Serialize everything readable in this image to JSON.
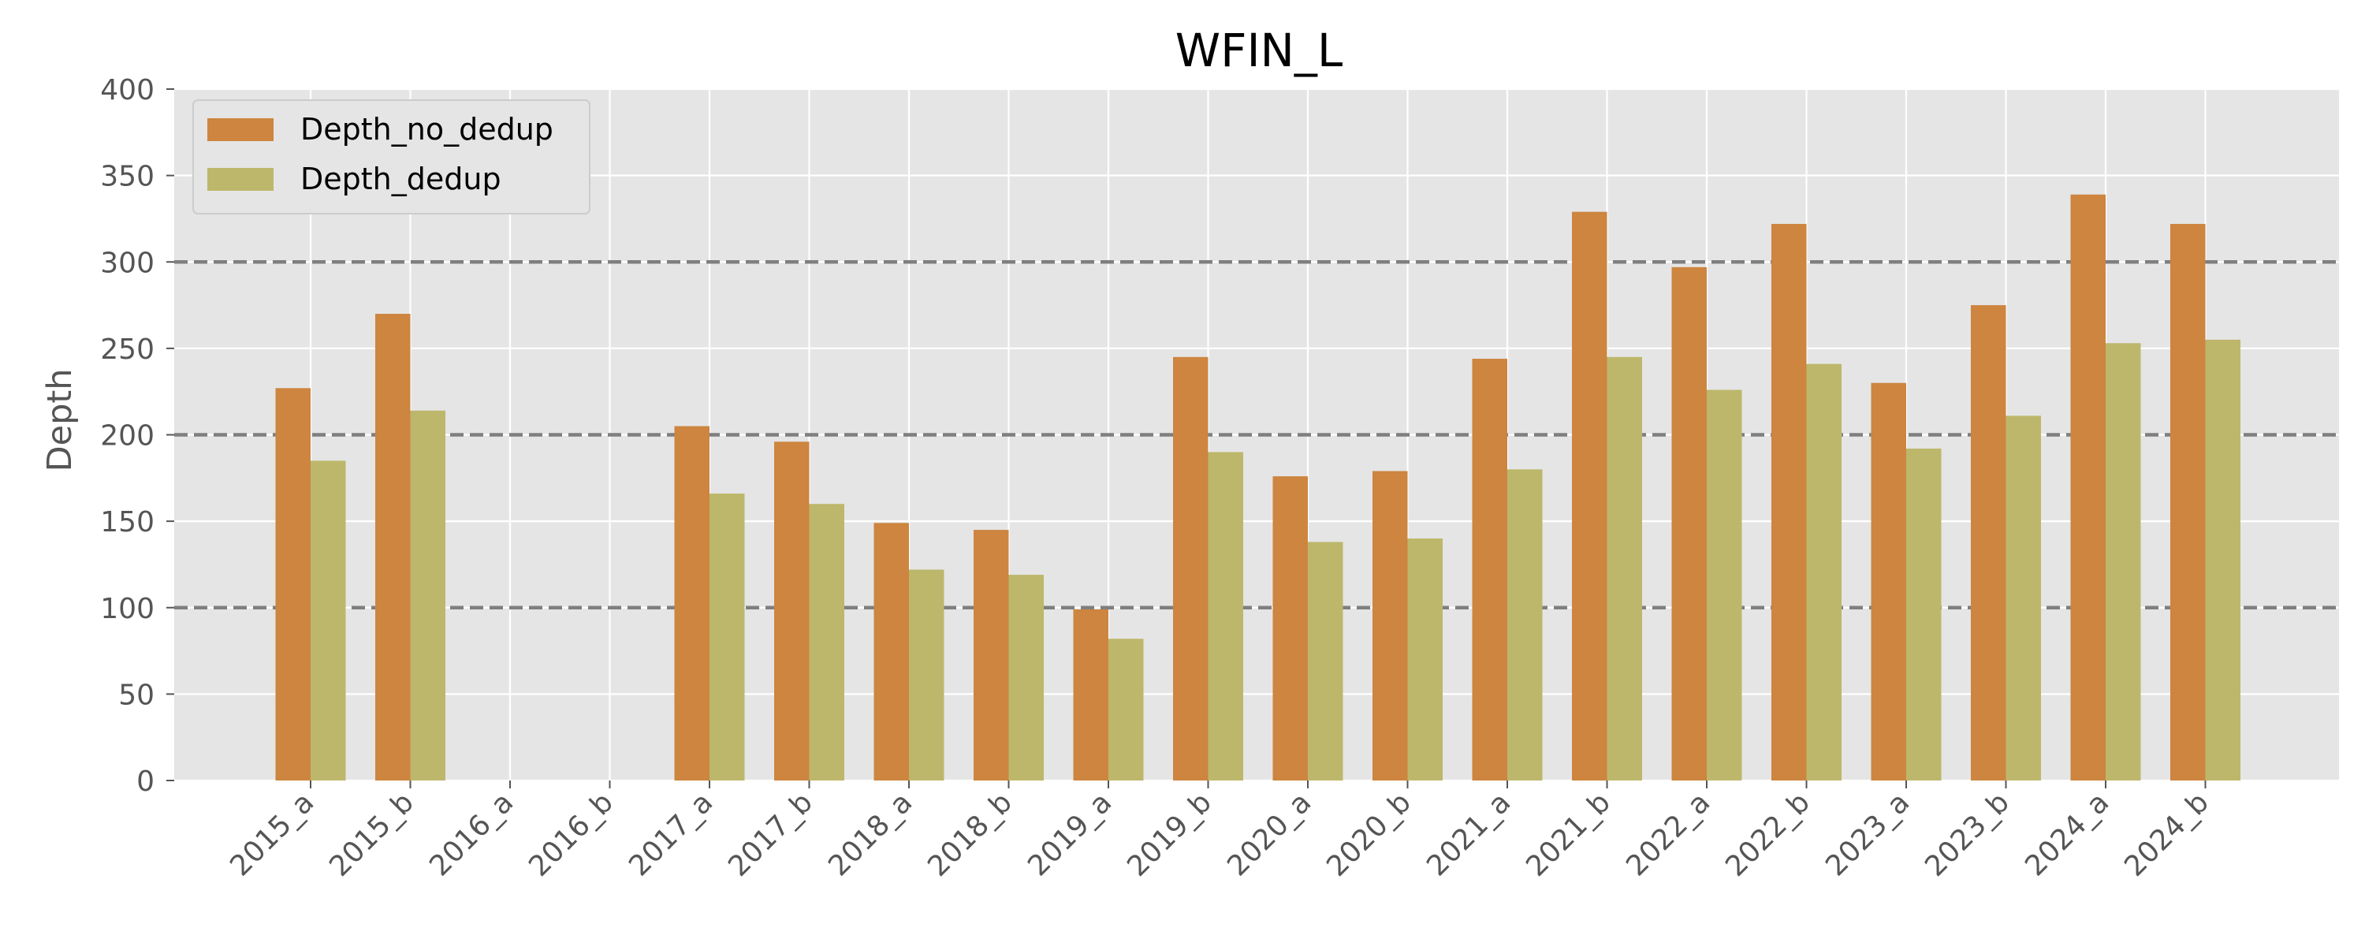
{
  "chart_data": {
    "type": "bar",
    "title": "WFIN_L",
    "xlabel": "",
    "ylabel": "Depth",
    "ylim": [
      0,
      400
    ],
    "yticks": [
      0,
      50,
      100,
      150,
      200,
      250,
      300,
      350,
      400
    ],
    "grid": true,
    "legend_position": "top-left",
    "reference_lines": [
      100,
      200,
      300
    ],
    "reference_line_color": "#7f7f7f",
    "background_color": "#e5e5e5",
    "categories": [
      "2015_a",
      "2015_b",
      "2016_a",
      "2016_b",
      "2017_a",
      "2017_b",
      "2018_a",
      "2018_b",
      "2019_a",
      "2019_b",
      "2020_a",
      "2020_b",
      "2021_a",
      "2021_b",
      "2022_a",
      "2022_b",
      "2023_a",
      "2023_b",
      "2024_a",
      "2024_b"
    ],
    "series": [
      {
        "name": "Depth_no_dedup",
        "color": "#cd853f",
        "values": [
          227,
          270,
          null,
          null,
          205,
          196,
          149,
          145,
          99,
          245,
          176,
          179,
          244,
          329,
          297,
          322,
          230,
          275,
          339,
          322
        ]
      },
      {
        "name": "Depth_dedup",
        "color": "#bdb76b",
        "values": [
          185,
          214,
          null,
          null,
          166,
          160,
          122,
          119,
          82,
          190,
          138,
          140,
          180,
          245,
          226,
          241,
          192,
          211,
          253,
          255
        ]
      }
    ]
  }
}
